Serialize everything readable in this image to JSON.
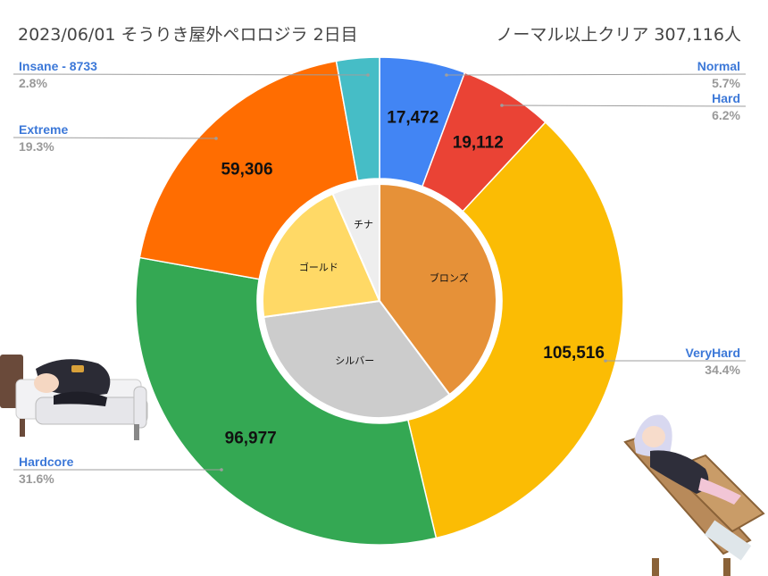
{
  "header": {
    "title_left": "2023/06/01 そうりき屋外ペロロジラ 2日目",
    "title_right": "ノーマル以上クリア  307,116人"
  },
  "chart_data": [
    {
      "type": "pie",
      "subtype": "donut-outer",
      "categories": [
        "Normal",
        "Hard",
        "VeryHard",
        "Hardcore",
        "Extreme",
        "Insane - 8733"
      ],
      "values": [
        17472,
        19112,
        105516,
        96977,
        59306,
        8733
      ],
      "percent_labels": [
        "5.7%",
        "6.2%",
        "34.4%",
        "31.6%",
        "19.3%",
        "2.8%"
      ],
      "value_labels": [
        "17,472",
        "19,112",
        "105,516",
        "96,977",
        "59,306",
        ""
      ],
      "colors": [
        "#4285f4",
        "#ea4335",
        "#fbbc04",
        "#34a853",
        "#ff6d01",
        "#46bdc6"
      ],
      "legend": "callout labels (left and right)"
    },
    {
      "type": "pie",
      "subtype": "inner-pie",
      "categories": [
        "ブロンズ",
        "シルバー",
        "ゴールド",
        "チナ"
      ],
      "values": [
        37.6,
        31.2,
        19.5,
        6.2
      ],
      "colors": [
        "#e69138",
        "#cccccc",
        "#ffd966",
        "#eeeeee"
      ]
    }
  ],
  "decorations": {
    "left": "anime-character-sleeping-on-sofa",
    "right": "anime-character-on-wooden-lounger"
  }
}
